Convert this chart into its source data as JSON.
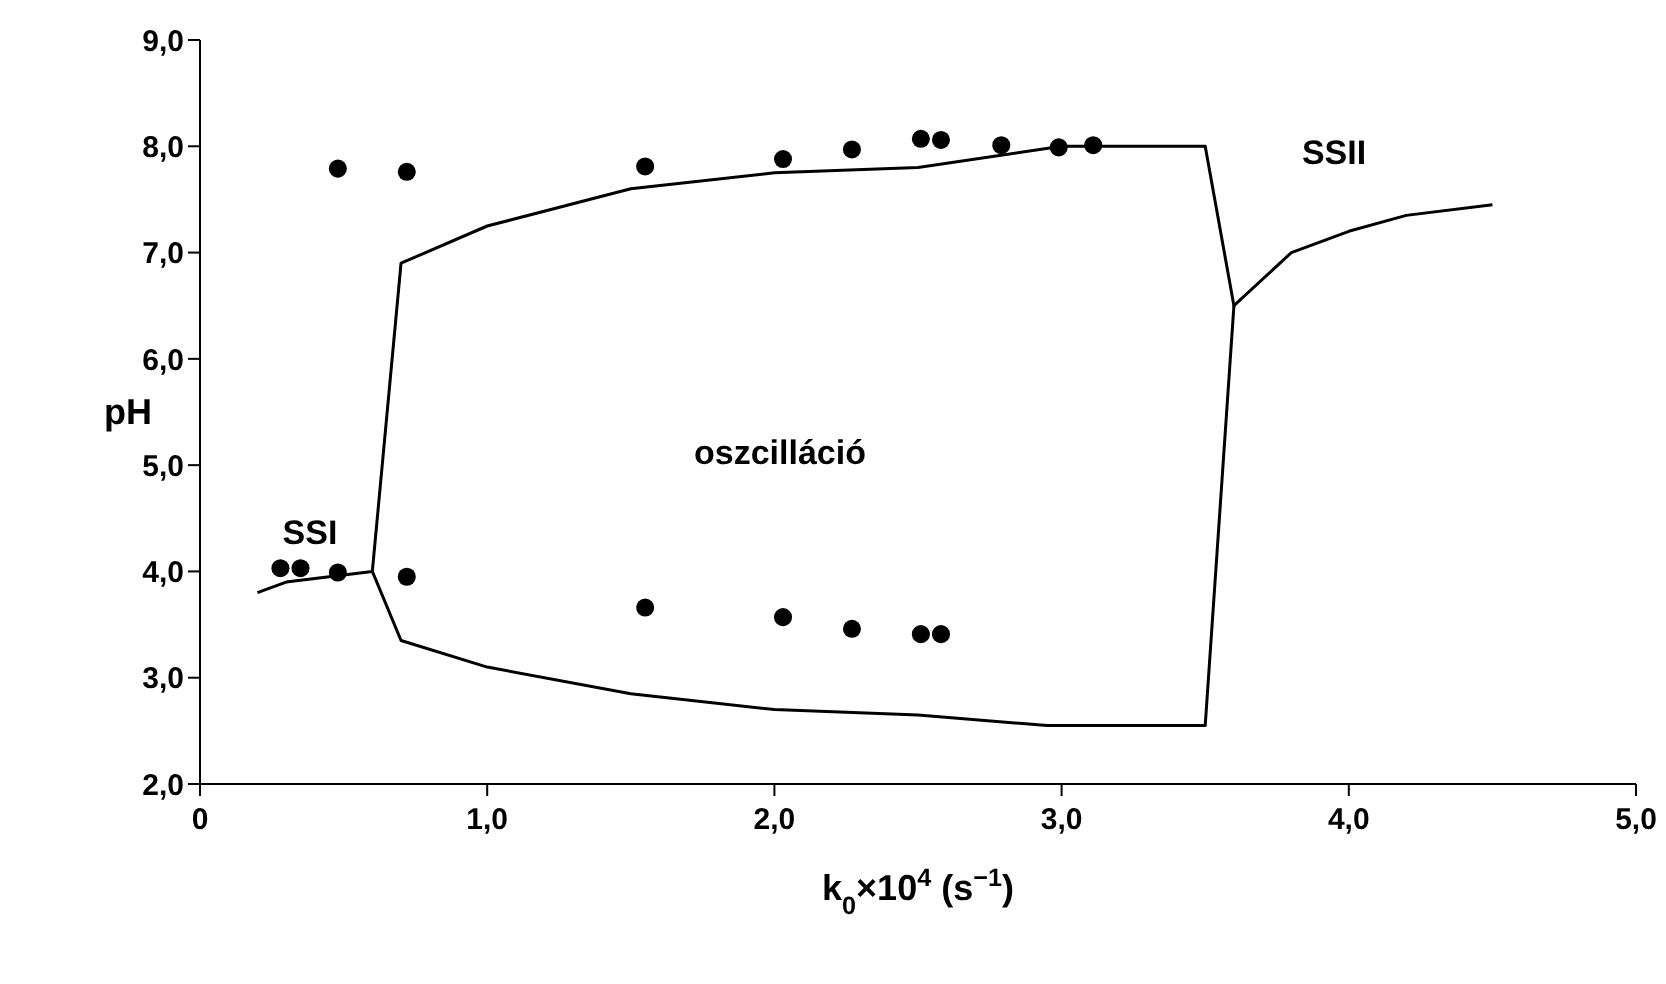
{
  "chart_data": {
    "type": "line",
    "xlabel": "k$_{0}$×10$^{4}$ (s$^{−1}$)",
    "ylabel": "pH",
    "xlim": [
      0,
      5
    ],
    "ylim": [
      2,
      9
    ],
    "xticks": [
      0,
      {
        "value": 1,
        "label": "1,0"
      },
      {
        "value": 2,
        "label": "2,0"
      },
      {
        "value": 3,
        "label": "3,0"
      },
      {
        "value": 4,
        "label": "4,0"
      },
      {
        "value": 5,
        "label": "5,0"
      }
    ],
    "yticks": [
      {
        "value": 2,
        "label": "2,0"
      },
      {
        "value": 3,
        "label": "3,0"
      },
      {
        "value": 4,
        "label": "4,0"
      },
      {
        "value": 5,
        "label": "5,0"
      },
      {
        "value": 6,
        "label": "6,0"
      },
      {
        "value": 7,
        "label": "7,0"
      },
      {
        "value": 8,
        "label": "8,0"
      },
      {
        "value": 9,
        "label": "9,0"
      }
    ],
    "grid": false,
    "line_style": "solid",
    "series": [
      {
        "color": "#000000",
        "marker": "none",
        "x": [
          0.2,
          0.3,
          0.6,
          0.7,
          1.0,
          1.5,
          2.0,
          2.5,
          3.0,
          3.5,
          3.6,
          3.8,
          4.0,
          4.2,
          4.5
        ],
        "values": [
          3.8,
          3.9,
          4.0,
          6.9,
          7.25,
          7.6,
          7.75,
          7.8,
          8.0,
          8.0,
          6.5,
          7.0,
          7.2,
          7.35,
          7.45
        ]
      },
      {
        "color": "#000000",
        "marker": "none",
        "x": [
          0.6,
          0.7,
          1.0,
          1.5,
          2.0,
          2.5,
          2.95,
          3.5,
          3.6
        ],
        "values": [
          4.0,
          3.35,
          3.1,
          2.85,
          2.7,
          2.65,
          2.55,
          2.55,
          6.5
        ]
      },
      {
        "type": "scatter",
        "color": "#000000",
        "marker": "circle",
        "x": [
          0.48,
          0.72,
          1.55,
          2.03,
          2.27,
          2.51,
          2.58,
          2.79,
          2.99,
          3.11,
          0.28,
          0.35,
          0.48,
          0.72,
          1.55,
          2.03,
          2.27,
          2.51,
          2.58
        ],
        "values": [
          7.79,
          7.76,
          7.81,
          7.88,
          7.97,
          8.07,
          8.06,
          8.01,
          7.99,
          8.01,
          4.03,
          4.03,
          3.99,
          3.95,
          3.66,
          3.57,
          3.46,
          3.41,
          3.41
        ]
      }
    ],
    "annotations": [
      "SSI",
      "oszcilláció",
      "SSII"
    ]
  }
}
